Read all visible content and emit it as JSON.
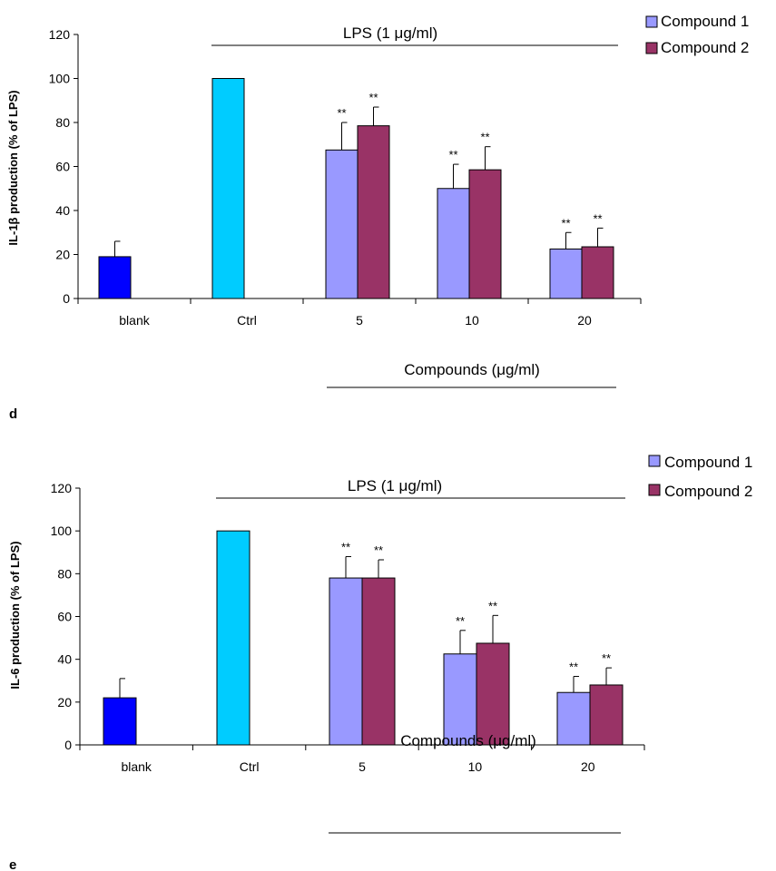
{
  "chart_data": [
    {
      "type": "bar",
      "panel_label": "d",
      "ylabel": "IL-1β production (% of LPS)",
      "ylim": [
        0,
        120
      ],
      "yticks": [
        0,
        20,
        40,
        60,
        80,
        100,
        120
      ],
      "categories": [
        "blank",
        "Ctrl",
        "5",
        "10",
        "20"
      ],
      "bracket_top": "LPS (1 μg/ml)",
      "bracket_bottom": "Compounds (μg/ml)",
      "legend": [
        "Compound 1",
        "Compound 2"
      ],
      "legend_position": "top-right",
      "grid": false,
      "significance_label": "**",
      "series": [
        {
          "color": "#0000ff",
          "values": [
            19,
            null,
            null,
            null,
            null
          ],
          "errors": [
            7,
            null,
            null,
            null,
            null
          ]
        },
        {
          "color": "#00ccff",
          "values": [
            null,
            100,
            null,
            null,
            null
          ],
          "errors": [
            null,
            0,
            null,
            null,
            null
          ]
        },
        {
          "name": "Compound 1",
          "color": "#9999ff",
          "values": [
            null,
            null,
            67.5,
            50,
            22.5
          ],
          "errors": [
            null,
            null,
            12.5,
            11,
            7.5
          ],
          "significant": [
            false,
            false,
            true,
            true,
            true
          ]
        },
        {
          "name": "Compound 2",
          "color": "#993366",
          "values": [
            null,
            null,
            78.5,
            58.5,
            23.5
          ],
          "errors": [
            null,
            null,
            8.5,
            10.5,
            8.5
          ],
          "significant": [
            false,
            false,
            true,
            true,
            true
          ]
        }
      ]
    },
    {
      "type": "bar",
      "panel_label": "e",
      "ylabel": "IL-6 production (% of LPS)",
      "ylim": [
        0,
        120
      ],
      "yticks": [
        0,
        20,
        40,
        60,
        80,
        100,
        120
      ],
      "categories": [
        "blank",
        "Ctrl",
        "5",
        "10",
        "20"
      ],
      "bracket_top": "LPS (1 μg/ml)",
      "bracket_bottom": "Compounds (μg/ml)",
      "legend": [
        "Compound 1",
        "Compound 2"
      ],
      "legend_position": "top-right",
      "grid": false,
      "significance_label": "**",
      "series": [
        {
          "color": "#0000ff",
          "values": [
            22,
            null,
            null,
            null,
            null
          ],
          "errors": [
            9,
            null,
            null,
            null,
            null
          ]
        },
        {
          "color": "#00ccff",
          "values": [
            null,
            100,
            null,
            null,
            null
          ],
          "errors": [
            null,
            0,
            null,
            null,
            null
          ]
        },
        {
          "name": "Compound 1",
          "color": "#9999ff",
          "values": [
            null,
            null,
            78,
            42.5,
            24.5
          ],
          "errors": [
            null,
            null,
            10,
            11,
            7.5
          ],
          "significant": [
            false,
            false,
            true,
            true,
            true
          ]
        },
        {
          "name": "Compound 2",
          "color": "#993366",
          "values": [
            null,
            null,
            78,
            47.5,
            28
          ],
          "errors": [
            null,
            null,
            8.5,
            13,
            8
          ],
          "significant": [
            false,
            false,
            true,
            true,
            true
          ]
        }
      ]
    }
  ]
}
